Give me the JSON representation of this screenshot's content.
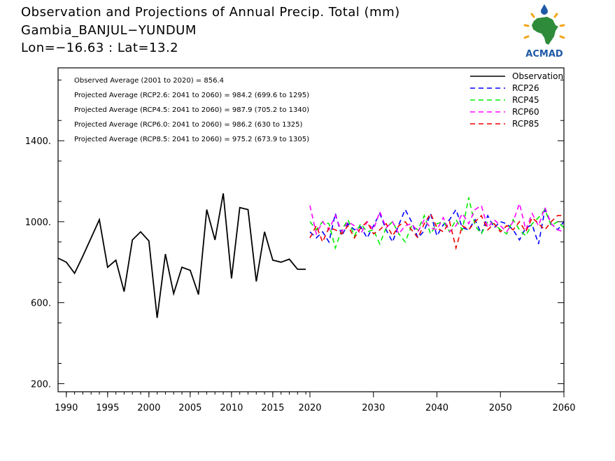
{
  "header": {
    "line1": "Observation and Projections of Annual Precip. Total (mm)",
    "line2": "Gambia_BANJUL−YUNDUM",
    "line3": "Lon=−16.63 : Lat=13.2"
  },
  "logo": {
    "text": "ACMAD",
    "colors": {
      "africa": "#2e8b3a",
      "text": "#1f5aa6",
      "sun": "#f2a51a",
      "drop": "#1f5aa6"
    }
  },
  "annotations": [
    "Observed Average (2001 to 2020) = 856.4",
    "Projected Average (RCP2.6: 2041 to 2060) = 984.2 (699.6 to 1295)",
    "Projected Average (RCP4.5: 2041 to 2060) = 987.9 (705.2 to 1340)",
    "Projected Average (RCP6.0: 2041 to 2060) = 986.2 (630 to 1325)",
    "Projected Average (RCP8.5: 2041 to 2060) = 975.2 (673.9 to 1305)"
  ],
  "chart_data": {
    "type": "line",
    "ylim": [
      160,
      1760
    ],
    "y_ticks": [
      200,
      600,
      1000,
      1400
    ],
    "y_tick_labels": [
      "200.",
      "600.",
      "1000.",
      "1400."
    ],
    "x_segments": [
      {
        "range": [
          1989,
          2019.5
        ],
        "ticks": [
          1990,
          1995,
          2000,
          2005,
          2010,
          2015
        ],
        "labels": [
          "1990",
          "1995",
          "2000",
          "2005",
          "2010",
          "2015"
        ]
      },
      {
        "range": [
          2020,
          2060
        ],
        "ticks": [
          2020,
          2030,
          2040,
          2050,
          2060
        ],
        "labels": [
          "2020",
          "2030",
          "2040",
          "2050",
          "2060"
        ]
      }
    ],
    "legend_position": "top-right",
    "series": [
      {
        "name": "Observation",
        "color": "#000000",
        "dash": "solid",
        "x": [
          1989,
          1990,
          1991,
          1992,
          1993,
          1994,
          1995,
          1996,
          1997,
          1998,
          1999,
          2000,
          2001,
          2002,
          2003,
          2004,
          2005,
          2006,
          2007,
          2008,
          2009,
          2010,
          2011,
          2012,
          2013,
          2014,
          2015,
          2016,
          2017,
          2018,
          2019
        ],
        "values": [
          820,
          800,
          745,
          830,
          920,
          1010,
          775,
          810,
          655,
          910,
          950,
          905,
          525,
          840,
          645,
          775,
          760,
          640,
          1060,
          910,
          1140,
          720,
          1070,
          1060,
          705,
          950,
          810,
          800,
          815,
          765,
          765
        ]
      },
      {
        "name": "RCP26",
        "color": "#0000ff",
        "dash": "dashed",
        "x": [
          2020,
          2021,
          2022,
          2023,
          2024,
          2025,
          2026,
          2027,
          2028,
          2029,
          2030,
          2031,
          2032,
          2033,
          2034,
          2035,
          2036,
          2037,
          2038,
          2039,
          2040,
          2041,
          2042,
          2043,
          2044,
          2045,
          2046,
          2047,
          2048,
          2049,
          2050,
          2051,
          2052,
          2053,
          2054,
          2055,
          2056,
          2057,
          2058,
          2059,
          2060
        ],
        "values": [
          950,
          920,
          950,
          900,
          1040,
          930,
          990,
          960,
          975,
          920,
          980,
          1040,
          960,
          900,
          985,
          1060,
          1000,
          920,
          955,
          1040,
          930,
          985,
          1010,
          1060,
          970,
          960,
          1010,
          940,
          1030,
          970,
          1000,
          990,
          960,
          910,
          970,
          985,
          890,
          1060,
          990,
          960,
          1000
        ]
      },
      {
        "name": "RCP45",
        "color": "#00ee00",
        "dash": "dashed",
        "x": [
          2020,
          2021,
          2022,
          2023,
          2024,
          2025,
          2026,
          2027,
          2028,
          2029,
          2030,
          2031,
          2032,
          2033,
          2034,
          2035,
          2036,
          2037,
          2038,
          2039,
          2040,
          2041,
          2042,
          2043,
          2044,
          2045,
          2046,
          2047,
          2048,
          2049,
          2050,
          2051,
          2052,
          2053,
          2054,
          2055,
          2056,
          2057,
          2058,
          2059,
          2060
        ],
        "values": [
          1000,
          960,
          1000,
          990,
          870,
          960,
          1010,
          930,
          990,
          950,
          960,
          890,
          970,
          1000,
          940,
          900,
          980,
          960,
          1030,
          940,
          990,
          1000,
          950,
          1010,
          960,
          1120,
          980,
          940,
          1000,
          990,
          960,
          940,
          1010,
          960,
          930,
          990,
          1020,
          1060,
          980,
          1000,
          970
        ]
      },
      {
        "name": "RCP60",
        "color": "#ff00ff",
        "dash": "dashed",
        "x": [
          2020,
          2021,
          2022,
          2023,
          2024,
          2025,
          2026,
          2027,
          2028,
          2029,
          2030,
          2031,
          2032,
          2033,
          2034,
          2035,
          2036,
          2037,
          2038,
          2039,
          2040,
          2041,
          2042,
          2043,
          2044,
          2045,
          2046,
          2047,
          2048,
          2049,
          2050,
          2051,
          2052,
          2053,
          2054,
          2055,
          2056,
          2057,
          2058,
          2059,
          2060
        ],
        "values": [
          1080,
          940,
          1000,
          960,
          1030,
          950,
          1000,
          980,
          940,
          1000,
          960,
          1050,
          970,
          1000,
          940,
          980,
          990,
          950,
          1010,
          970,
          960,
          1020,
          950,
          980,
          1040,
          990,
          1060,
          1080,
          970,
          1010,
          980,
          950,
          1000,
          1090,
          960,
          1040,
          980,
          1070,
          990,
          960,
          950
        ]
      },
      {
        "name": "RCP85",
        "color": "#ee0000",
        "dash": "dashed",
        "x": [
          2020,
          2021,
          2022,
          2023,
          2024,
          2025,
          2026,
          2027,
          2028,
          2029,
          2030,
          2031,
          2032,
          2033,
          2034,
          2035,
          2036,
          2037,
          2038,
          2039,
          2040,
          2041,
          2042,
          2043,
          2044,
          2045,
          2046,
          2047,
          2048,
          2049,
          2050,
          2051,
          2052,
          2053,
          2054,
          2055,
          2056,
          2057,
          2058,
          2059,
          2060
        ],
        "values": [
          920,
          980,
          900,
          970,
          960,
          940,
          980,
          920,
          970,
          1000,
          940,
          960,
          990,
          930,
          980,
          1000,
          960,
          920,
          990,
          1040,
          970,
          950,
          1000,
          870,
          980,
          960,
          1000,
          1030,
          960,
          990,
          950,
          980,
          960,
          1000,
          950,
          1020,
          990,
          960,
          1000,
          1030,
          1030
        ]
      }
    ]
  }
}
